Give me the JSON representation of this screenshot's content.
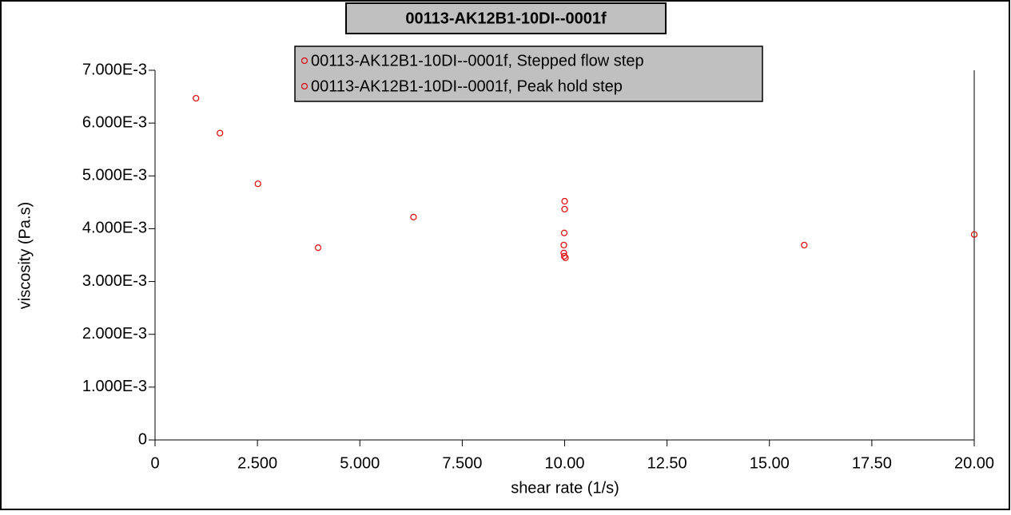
{
  "chart_data": {
    "type": "scatter",
    "title": "00113-AK12B1-10DI--0001f",
    "x_label": "shear rate (1/s)",
    "y_label": "viscosity (Pa.s)",
    "xlim": [
      0,
      20
    ],
    "ylim": [
      0,
      0.007
    ],
    "xticks": [
      0,
      {
        "value": 2.5,
        "label": "2.500"
      },
      {
        "value": 5,
        "label": "5.000"
      },
      {
        "value": 7.5,
        "label": "7.500"
      },
      {
        "value": 10,
        "label": "10.00"
      },
      {
        "value": 12.5,
        "label": "12.50"
      },
      {
        "value": 15,
        "label": "15.00"
      },
      {
        "value": 17.5,
        "label": "17.50"
      },
      {
        "value": 20,
        "label": "20.00"
      }
    ],
    "yticks": [
      0,
      {
        "value": 0.001,
        "label": "1.000E-3"
      },
      {
        "value": 0.002,
        "label": "2.000E-3"
      },
      {
        "value": 0.003,
        "label": "3.000E-3"
      },
      {
        "value": 0.004,
        "label": "4.000E-3"
      },
      {
        "value": 0.005,
        "label": "5.000E-3"
      },
      {
        "value": 0.006,
        "label": "6.000E-3"
      },
      {
        "value": 0.007,
        "label": "7.000E-3"
      }
    ],
    "series": [
      {
        "name": "00113-AK12B1-10DI--0001f, Stepped flow step",
        "color": "#e00000",
        "x": [
          1.0,
          1.585,
          2.512,
          3.981,
          6.31,
          10.0,
          15.85,
          20.0
        ],
        "values": [
          0.00647,
          0.00581,
          0.00485,
          0.00364,
          0.00422,
          0.00437,
          0.00369,
          0.00389
        ]
      },
      {
        "name": "00113-AK12B1-10DI--0001f, Peak hold step",
        "color": "#e00000",
        "x": [
          10.0,
          9.99,
          9.98,
          9.98,
          9.99,
          10.02
        ],
        "values": [
          0.00452,
          0.00392,
          0.00369,
          0.00354,
          0.00348,
          0.00345
        ]
      }
    ]
  }
}
